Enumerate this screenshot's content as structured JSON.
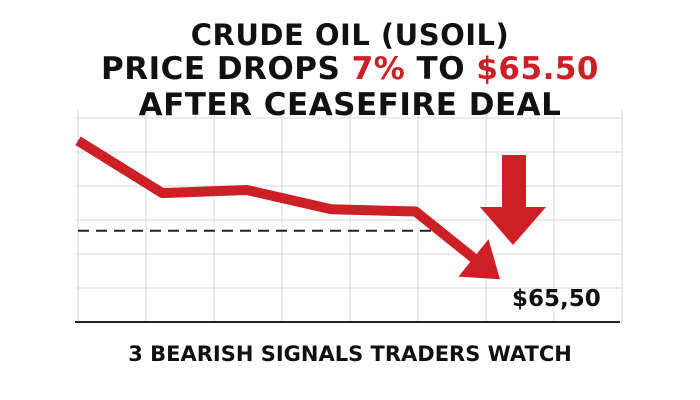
{
  "headline": {
    "line1": "CRUDE OIL (USOIL)",
    "line2_prefix": "PRICE DROPS ",
    "line2_percent": "7%",
    "line2_middle": " TO ",
    "line2_price": "$65.50",
    "line3": "AFTER CEASEFIRE DEAL"
  },
  "subheadline": "3 BEARISH SIGNALS TRADERS WATCH",
  "colors": {
    "accent": "#cc2026",
    "text": "#111111",
    "grid": "#d9d9d9"
  },
  "icons": {
    "down_arrow": "down-arrow-icon"
  },
  "chart_data": {
    "type": "line",
    "title": "",
    "xlabel": "",
    "ylabel": "",
    "x": [
      0,
      1,
      2,
      3,
      4,
      5
    ],
    "series": [
      {
        "values": [
          100,
          93.2,
          93.6,
          91.1,
          90.8,
          82
        ]
      }
    ],
    "ylim": [
      78,
      104
    ],
    "reference_line": {
      "value": 88.3,
      "style": "dashed"
    },
    "end_label": "$65,50",
    "grid": true,
    "legend": "none"
  }
}
